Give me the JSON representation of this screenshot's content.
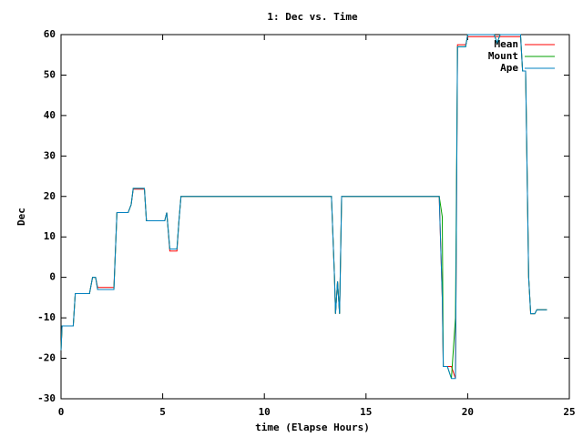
{
  "chart_data": {
    "type": "line",
    "title": "1: Dec vs. Time",
    "xlabel": "time (Elapse Hours)",
    "ylabel": "Dec",
    "x": [
      0,
      0.05,
      0.6,
      0.7,
      1.4,
      1.55,
      1.7,
      1.8,
      2.6,
      2.75,
      3.3,
      3.45,
      3.55,
      4.1,
      4.2,
      5.1,
      5.2,
      5.35,
      5.7,
      5.8,
      5.9,
      13.3,
      13.45,
      13.5,
      13.6,
      13.7,
      13.8,
      18.6,
      18.75,
      18.8,
      19.0,
      19.2,
      19.4,
      19.5,
      19.9,
      20.0,
      21.3,
      21.45,
      21.6,
      22.6,
      22.7,
      22.85,
      23.0,
      23.1,
      23.3,
      23.4,
      23.9
    ],
    "series": [
      {
        "name": "Mean",
        "color": "#ff0000",
        "values": [
          -18,
          -12,
          -12,
          -4,
          -4,
          0,
          0,
          -2.5,
          -2.5,
          16,
          16,
          18,
          21.8,
          21.8,
          14,
          14,
          16,
          6.5,
          6.5,
          14,
          20,
          20,
          0,
          -9,
          -1,
          -9,
          20,
          20,
          -5,
          -22,
          -22,
          -22,
          -25,
          57.5,
          57.5,
          59.5,
          59.5,
          59.5,
          59.5,
          59.5,
          51,
          51,
          0,
          -9,
          -9,
          -8,
          -8
        ]
      },
      {
        "name": "Mount",
        "color": "#00a000",
        "values": [
          -18,
          -12,
          -12,
          -4,
          -4,
          0,
          0,
          -3,
          -3,
          16,
          16,
          18,
          22,
          22,
          14,
          14,
          16,
          7,
          7,
          14,
          20,
          20,
          0,
          -9,
          -1,
          -9,
          20,
          20,
          15,
          -22,
          -22,
          -25,
          -10,
          57,
          57,
          60,
          60,
          58,
          60,
          60,
          51,
          51,
          0,
          -9,
          -9,
          -8,
          -8
        ]
      },
      {
        "name": "Ape",
        "color": "#0080c0",
        "values": [
          -18,
          -12,
          -12,
          -4,
          -4,
          0,
          0,
          -3,
          -3,
          16,
          16,
          18,
          22,
          22,
          14,
          14,
          16,
          7,
          7,
          14,
          20,
          20,
          0,
          -9,
          -1,
          -9,
          20,
          20,
          -5,
          -22,
          -22,
          -25,
          -25,
          57,
          57,
          60,
          60,
          58,
          60,
          60,
          51,
          51,
          0,
          -9,
          -9,
          -8,
          -8
        ]
      }
    ],
    "xlim": [
      0,
      25
    ],
    "xticks": [
      0,
      5,
      10,
      15,
      20,
      25
    ],
    "ylim": [
      -30,
      60
    ],
    "yticks": [
      -30,
      -20,
      -10,
      0,
      10,
      20,
      30,
      40,
      50,
      60
    ],
    "legend": "upper-right"
  }
}
